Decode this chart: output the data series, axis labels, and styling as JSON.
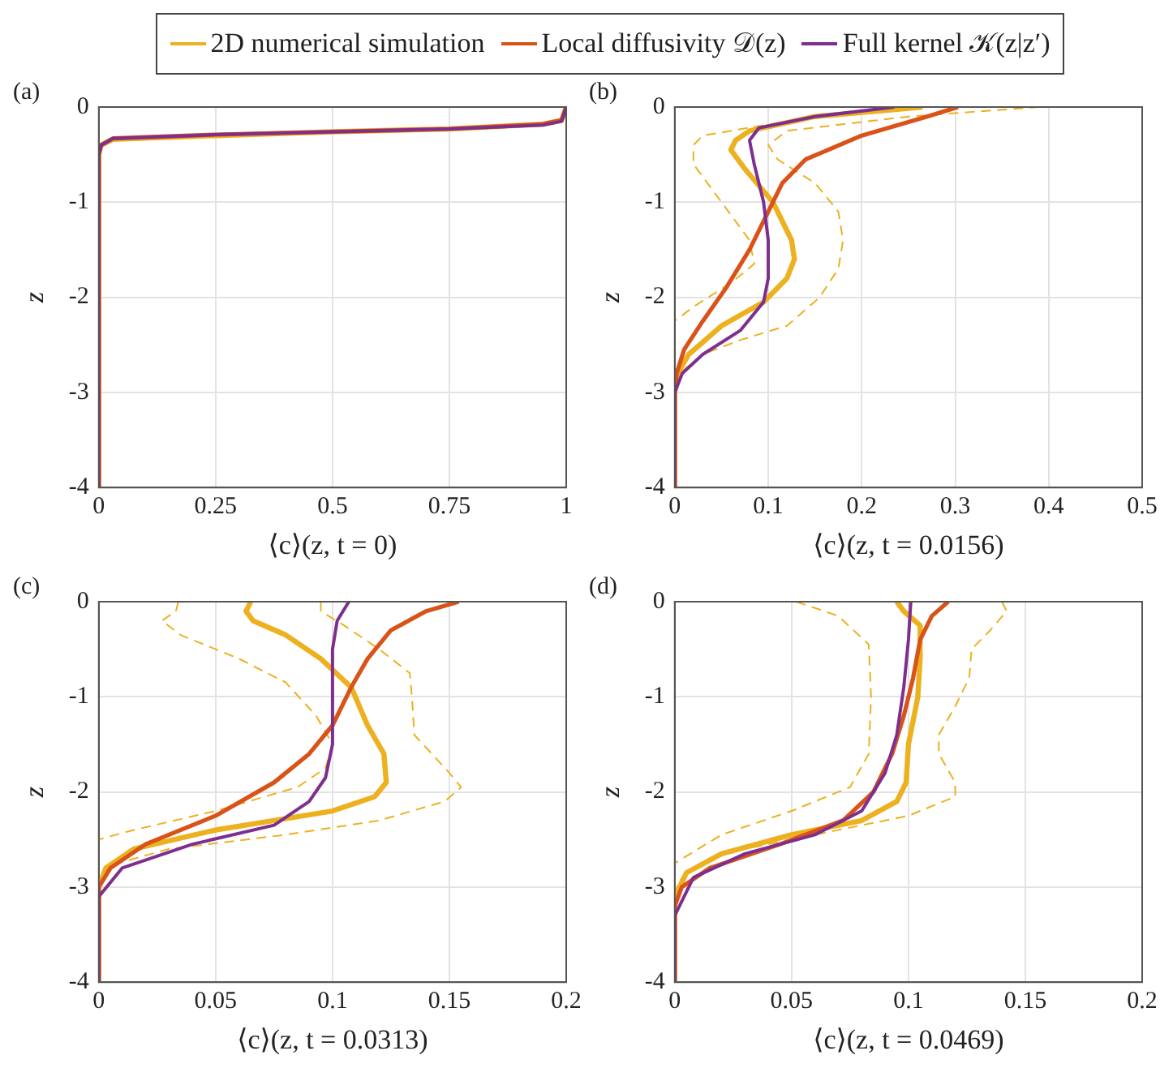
{
  "chart_data": [
    {
      "type": "line",
      "title": "(a)",
      "xlabel": "⟨c⟩(z, t = 0)",
      "ylabel": "z",
      "xlim": [
        0,
        1
      ],
      "xticks": [
        0,
        0.25,
        0.5,
        0.75,
        1
      ],
      "ylim": [
        -4,
        0
      ],
      "yticks": [
        0,
        -1,
        -2,
        -3,
        -4
      ],
      "grid": true,
      "legend": "top",
      "series": [
        {
          "name": "2D numerical simulation",
          "color": "#edb120",
          "x": [
            0,
            0,
            0.005,
            0.03,
            0.25,
            0.5,
            0.75,
            0.95,
            0.99,
            1
          ],
          "values": [
            -4,
            -0.5,
            -0.4,
            -0.34,
            -0.3,
            -0.26,
            -0.23,
            -0.18,
            -0.14,
            0
          ]
        },
        {
          "name": "Local diffusivity 𝒟(z)",
          "color": "#d95319",
          "x": [
            0,
            0,
            0.005,
            0.03,
            0.25,
            0.5,
            0.75,
            0.95,
            0.99,
            1
          ],
          "values": [
            -4,
            -0.5,
            -0.4,
            -0.33,
            -0.29,
            -0.26,
            -0.23,
            -0.18,
            -0.14,
            0
          ]
        },
        {
          "name": "Full kernel 𝒦(z|z′)",
          "color": "#7e2f8e",
          "x": [
            0,
            0,
            0.005,
            0.03,
            0.25,
            0.5,
            0.75,
            0.95,
            0.99,
            1
          ],
          "values": [
            -4,
            -0.5,
            -0.4,
            -0.33,
            -0.29,
            -0.26,
            -0.23,
            -0.19,
            -0.15,
            0
          ]
        }
      ]
    },
    {
      "type": "line",
      "title": "(b)",
      "xlabel": "⟨c⟩(z, t = 0.0156)",
      "ylabel": "z",
      "xlim": [
        0,
        0.5
      ],
      "xticks": [
        0,
        0.1,
        0.2,
        0.3,
        0.4,
        0.5
      ],
      "ylim": [
        -4,
        0
      ],
      "yticks": [
        0,
        -1,
        -2,
        -3,
        -4
      ],
      "grid": true,
      "series": [
        {
          "color": "#edb120",
          "line_style": "dashed",
          "x": [
            0.25,
            0.12,
            0.03,
            0.02,
            0.02,
            0.05,
            0.08,
            0.085,
            0.06,
            0.02,
            0
          ],
          "values": [
            0,
            -0.15,
            -0.3,
            -0.4,
            -0.6,
            -1.0,
            -1.4,
            -1.65,
            -1.85,
            -2.1,
            -2.25
          ]
        },
        {
          "color": "#edb120",
          "line_style": "dashed",
          "x": [
            0.39,
            0.25,
            0.12,
            0.1,
            0.11,
            0.15,
            0.175,
            0.18,
            0.175,
            0.155,
            0.12,
            0.07,
            0.03,
            0.005,
            0
          ],
          "values": [
            0,
            -0.1,
            -0.25,
            -0.4,
            -0.55,
            -0.8,
            -1.1,
            -1.4,
            -1.7,
            -2.0,
            -2.3,
            -2.45,
            -2.6,
            -2.8,
            -3
          ]
        },
        {
          "color": "#edb120",
          "x": [
            0.265,
            0.15,
            0.08,
            0.065,
            0.06,
            0.075,
            0.105,
            0.125,
            0.128,
            0.12,
            0.095,
            0.05,
            0.015,
            0.003,
            0,
            0
          ],
          "values": [
            0,
            -0.1,
            -0.25,
            -0.35,
            -0.45,
            -0.65,
            -1.0,
            -1.4,
            -1.6,
            -1.8,
            -2.05,
            -2.3,
            -2.6,
            -2.8,
            -3,
            -4
          ]
        },
        {
          "color": "#d95319",
          "x": [
            0.303,
            0.27,
            0.2,
            0.14,
            0.115,
            0.1,
            0.08,
            0.055,
            0.03,
            0.01,
            0.002,
            0,
            0
          ],
          "values": [
            0,
            -0.1,
            -0.3,
            -0.55,
            -0.8,
            -1.1,
            -1.5,
            -1.9,
            -2.25,
            -2.55,
            -2.8,
            -3,
            -4
          ]
        },
        {
          "color": "#7e2f8e",
          "x": [
            0.235,
            0.15,
            0.09,
            0.08,
            0.085,
            0.095,
            0.1,
            0.1,
            0.095,
            0.07,
            0.03,
            0.008,
            0,
            0
          ],
          "values": [
            0,
            -0.1,
            -0.22,
            -0.35,
            -0.6,
            -1.0,
            -1.4,
            -1.8,
            -2.05,
            -2.35,
            -2.6,
            -2.8,
            -3,
            -4
          ]
        }
      ]
    },
    {
      "type": "line",
      "title": "(c)",
      "xlabel": "⟨c⟩(z, t = 0.0313)",
      "ylabel": "z",
      "xlim": [
        0,
        0.2
      ],
      "xticks": [
        0,
        0.05,
        0.1,
        0.15,
        0.2
      ],
      "ylim": [
        -4,
        0
      ],
      "yticks": [
        0,
        -1,
        -2,
        -3,
        -4
      ],
      "grid": true,
      "series": [
        {
          "color": "#edb120",
          "line_style": "dashed",
          "x": [
            0.034,
            0.033,
            0.027,
            0.035,
            0.06,
            0.08,
            0.093,
            0.1,
            0.097,
            0.085,
            0.05,
            0.015,
            0
          ],
          "values": [
            0,
            -0.1,
            -0.2,
            -0.35,
            -0.6,
            -0.85,
            -1.2,
            -1.5,
            -1.75,
            -1.95,
            -2.2,
            -2.4,
            -2.5
          ]
        },
        {
          "color": "#edb120",
          "line_style": "dashed",
          "x": [
            0.095,
            0.095,
            0.105,
            0.12,
            0.133,
            0.134,
            0.135,
            0.15,
            0.155,
            0.148,
            0.12,
            0.08,
            0.03,
            0.008,
            0
          ],
          "values": [
            0,
            -0.1,
            -0.25,
            -0.5,
            -0.75,
            -1.0,
            -1.4,
            -1.8,
            -1.95,
            -2.1,
            -2.3,
            -2.45,
            -2.6,
            -2.75,
            -2.9
          ]
        },
        {
          "color": "#edb120",
          "x": [
            0.065,
            0.063,
            0.066,
            0.08,
            0.095,
            0.108,
            0.115,
            0.122,
            0.123,
            0.118,
            0.1,
            0.05,
            0.015,
            0.003,
            0,
            0
          ],
          "values": [
            0,
            -0.1,
            -0.2,
            -0.35,
            -0.6,
            -0.9,
            -1.3,
            -1.6,
            -1.9,
            -2.05,
            -2.2,
            -2.4,
            -2.6,
            -2.8,
            -3,
            -4
          ]
        },
        {
          "color": "#d95319",
          "x": [
            0.154,
            0.14,
            0.125,
            0.115,
            0.108,
            0.1,
            0.09,
            0.075,
            0.05,
            0.02,
            0.005,
            0,
            0
          ],
          "values": [
            0,
            -0.1,
            -0.3,
            -0.6,
            -0.9,
            -1.3,
            -1.6,
            -1.9,
            -2.25,
            -2.55,
            -2.8,
            -3,
            -4
          ]
        },
        {
          "color": "#7e2f8e",
          "x": [
            0.107,
            0.102,
            0.1,
            0.1,
            0.097,
            0.09,
            0.075,
            0.04,
            0.01,
            0,
            0
          ],
          "values": [
            0,
            -0.2,
            -0.5,
            -1.5,
            -1.85,
            -2.1,
            -2.35,
            -2.55,
            -2.8,
            -3.1,
            -4
          ]
        }
      ]
    },
    {
      "type": "line",
      "title": "(d)",
      "xlabel": "⟨c⟩(z, t = 0.0469)",
      "ylabel": "z",
      "xlim": [
        0,
        0.2
      ],
      "xticks": [
        0,
        0.05,
        0.1,
        0.15,
        0.2
      ],
      "ylim": [
        -4,
        0
      ],
      "yticks": [
        0,
        -1,
        -2,
        -3,
        -4
      ],
      "grid": true,
      "series": [
        {
          "color": "#edb120",
          "line_style": "dashed",
          "x": [
            0.052,
            0.07,
            0.083,
            0.084,
            0.083,
            0.075,
            0.05,
            0.02,
            0
          ],
          "values": [
            0,
            -0.15,
            -0.45,
            -1.0,
            -1.6,
            -1.95,
            -2.2,
            -2.45,
            -2.75
          ]
        },
        {
          "color": "#edb120",
          "line_style": "dashed",
          "x": [
            0.14,
            0.142,
            0.135,
            0.127,
            0.126,
            0.12,
            0.113,
            0.113,
            0.12,
            0.12,
            0.1,
            0.06,
            0.02,
            0.005,
            0
          ],
          "values": [
            0,
            -0.1,
            -0.3,
            -0.5,
            -0.8,
            -1.1,
            -1.4,
            -1.6,
            -1.9,
            -2.05,
            -2.25,
            -2.45,
            -2.65,
            -2.85,
            -3
          ]
        },
        {
          "color": "#edb120",
          "x": [
            0.095,
            0.098,
            0.105,
            0.105,
            0.104,
            0.1,
            0.099,
            0.095,
            0.08,
            0.05,
            0.02,
            0.005,
            0,
            0
          ],
          "values": [
            0,
            -0.1,
            -0.25,
            -0.6,
            -1.0,
            -1.5,
            -1.9,
            -2.1,
            -2.3,
            -2.45,
            -2.65,
            -2.85,
            -3.1,
            -4
          ]
        },
        {
          "color": "#d95319",
          "x": [
            0.117,
            0.11,
            0.105,
            0.102,
            0.098,
            0.093,
            0.085,
            0.072,
            0.045,
            0.015,
            0.003,
            0,
            0
          ],
          "values": [
            0,
            -0.15,
            -0.4,
            -0.8,
            -1.2,
            -1.6,
            -2.0,
            -2.3,
            -2.55,
            -2.8,
            -3.0,
            -3.2,
            -4
          ]
        },
        {
          "color": "#7e2f8e",
          "x": [
            0.101,
            0.1,
            0.098,
            0.095,
            0.09,
            0.08,
            0.06,
            0.03,
            0.008,
            0,
            0
          ],
          "values": [
            0,
            -0.4,
            -0.9,
            -1.4,
            -1.8,
            -2.2,
            -2.45,
            -2.65,
            -2.9,
            -3.3,
            -4
          ]
        }
      ]
    }
  ]
}
